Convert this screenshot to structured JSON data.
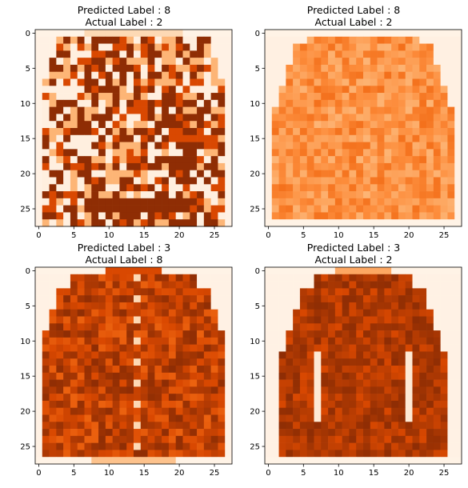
{
  "chart_data": [
    {
      "type": "heatmap",
      "colormap": "Oranges",
      "title_lines": [
        "Predicted Label : 8",
        "Actual Label : 2"
      ],
      "xlim": [
        -0.5,
        27.5
      ],
      "ylim": [
        27.5,
        -0.5
      ],
      "xticks": [
        0,
        5,
        10,
        15,
        20,
        25
      ],
      "yticks": [
        0,
        5,
        10,
        15,
        20,
        25
      ],
      "grid": false,
      "description_kind": "patterned sweater, dark mottled pattern"
    },
    {
      "type": "heatmap",
      "colormap": "Oranges",
      "title_lines": [
        "Predicted Label : 8",
        "Actual Label : 2"
      ],
      "xlim": [
        -0.5,
        27.5
      ],
      "ylim": [
        27.5,
        -0.5
      ],
      "xticks": [
        0,
        5,
        10,
        15,
        20,
        25
      ],
      "yticks": [
        0,
        5,
        10,
        15,
        20,
        25
      ],
      "grid": false,
      "description_kind": "light pullover, medium-light orange"
    },
    {
      "type": "heatmap",
      "colormap": "Oranges",
      "title_lines": [
        "Predicted Label : 3",
        "Actual Label : 8"
      ],
      "xlim": [
        -0.5,
        27.5
      ],
      "ylim": [
        27.5,
        -0.5
      ],
      "xticks": [
        0,
        5,
        10,
        15,
        20,
        25
      ],
      "yticks": [
        0,
        5,
        10,
        15,
        20,
        25
      ],
      "grid": false,
      "description_kind": "buttoned coat, dark orange with button column"
    },
    {
      "type": "heatmap",
      "colormap": "Oranges",
      "title_lines": [
        "Predicted Label : 3",
        "Actual Label : 2"
      ],
      "xlim": [
        -0.5,
        27.5
      ],
      "ylim": [
        27.5,
        -0.5
      ],
      "xticks": [
        0,
        5,
        10,
        15,
        20,
        25
      ],
      "yticks": [
        0,
        5,
        10,
        15,
        20,
        25
      ],
      "grid": false,
      "description_kind": "dark long-sleeve pullover"
    }
  ]
}
